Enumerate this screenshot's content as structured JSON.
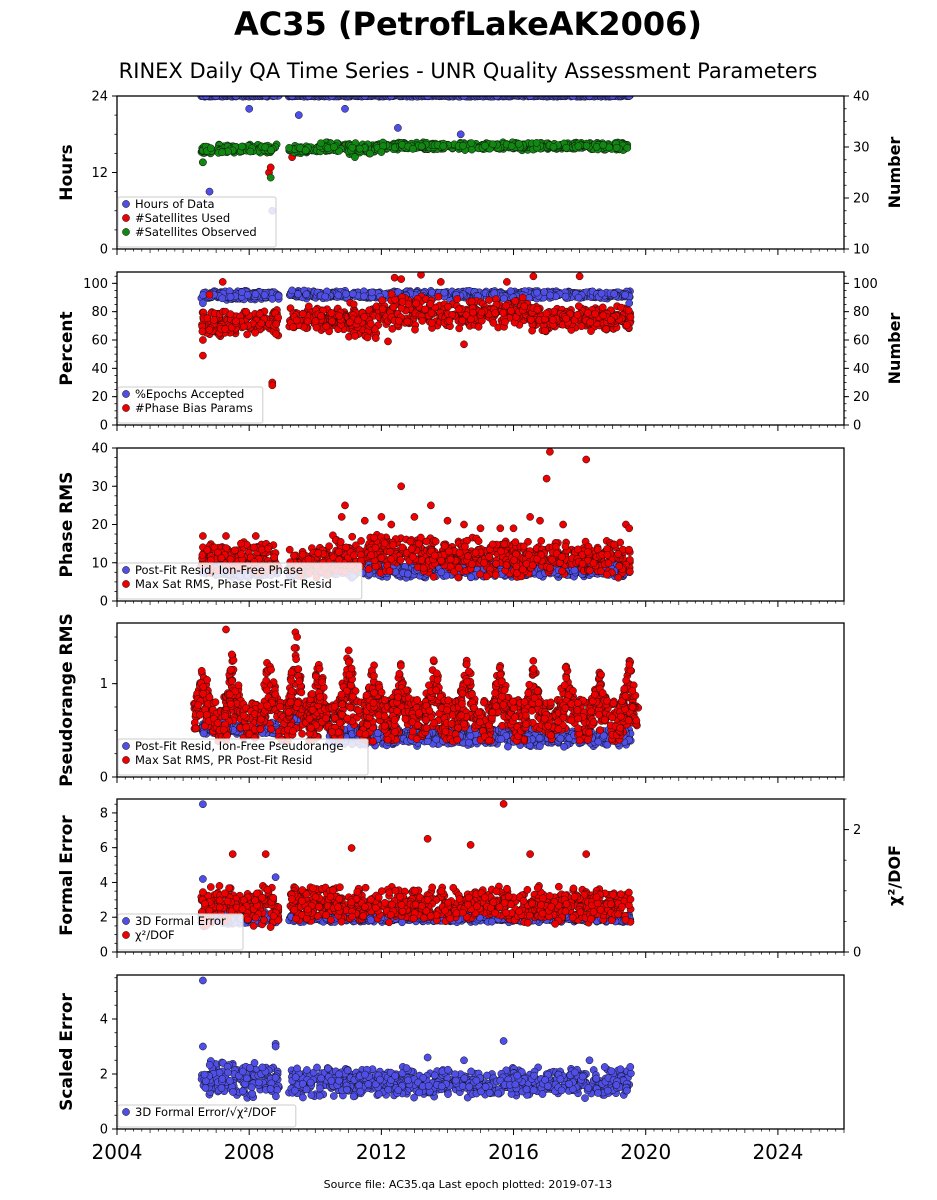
{
  "figure": {
    "title": "AC35 (PetrofLakeAK2006)",
    "subtitle": "RINEX Daily QA Time Series - UNR Quality Assessment Parameters",
    "footer": "Source file: AC35.qa Last epoch plotted: 2019-07-13",
    "colors": {
      "blue": "#4f4fe8",
      "red": "#ee0000",
      "green": "#118811",
      "edge": "#111111"
    }
  },
  "chart_data": [
    {
      "type": "scatter",
      "ylabel": "Hours",
      "y2label": "Number",
      "xlim": [
        2004,
        2026
      ],
      "ylim": [
        0,
        24
      ],
      "y2lim": [
        10,
        40
      ],
      "yticks": [
        0,
        12,
        24
      ],
      "y2ticks": [
        10,
        20,
        30,
        40
      ],
      "legend_position": "lower-left",
      "series": [
        {
          "name": "Hours of Data",
          "color": "#4f4fe8",
          "axis": "left",
          "points": [
            [
              2006.6,
              24
            ],
            [
              2006.7,
              24
            ],
            [
              2006.8,
              9
            ],
            [
              2007.0,
              24
            ],
            [
              2007.6,
              24
            ],
            [
              2008.0,
              22
            ],
            [
              2008.5,
              24
            ],
            [
              2008.7,
              6
            ],
            [
              2008.75,
              24
            ],
            [
              2009.3,
              24
            ],
            [
              2009.5,
              21
            ],
            [
              2009.8,
              24
            ],
            [
              2010.5,
              24
            ],
            [
              2010.9,
              22
            ],
            [
              2011.5,
              24
            ],
            [
              2012.3,
              24
            ],
            [
              2012.5,
              19
            ],
            [
              2013.4,
              24
            ],
            [
              2014.4,
              18
            ],
            [
              2014.5,
              24
            ],
            [
              2015.5,
              24
            ],
            [
              2016.5,
              24
            ],
            [
              2017.8,
              24
            ],
            [
              2018.3,
              24
            ],
            [
              2019.0,
              24
            ],
            [
              2019.5,
              24
            ]
          ],
          "segments": [
            [
              2006.55,
              2008.9,
              24
            ],
            [
              2009.2,
              2019.55,
              24
            ]
          ]
        },
        {
          "name": "#Satellites Used",
          "color": "#ee0000",
          "axis": "right",
          "points": [
            [
              2006.6,
              29
            ],
            [
              2006.6,
              27
            ],
            [
              2008.6,
              25
            ],
            [
              2008.65,
              26
            ],
            [
              2009.3,
              28
            ]
          ]
        },
        {
          "name": "#Satellites Observed",
          "color": "#118811",
          "axis": "right",
          "points": [
            [
              2006.6,
              27
            ],
            [
              2008.65,
              24
            ],
            [
              2011.2,
              28
            ],
            [
              2012.0,
              29
            ]
          ],
          "bands": [
            [
              2006.55,
              2006.9,
              28.5,
              30.3
            ],
            [
              2007.05,
              2008.85,
              28.7,
              30.6
            ],
            [
              2009.2,
              2010.1,
              28.7,
              30.3
            ],
            [
              2010.1,
              2011.0,
              29.0,
              31.0
            ],
            [
              2011.0,
              2011.8,
              28.5,
              30.8
            ],
            [
              2011.8,
              2012.6,
              29.2,
              31.0
            ],
            [
              2012.6,
              2019.5,
              29.3,
              31.0
            ]
          ]
        }
      ]
    },
    {
      "type": "scatter",
      "ylabel": "Percent",
      "y2label": "Number",
      "xlim": [
        2004,
        2026
      ],
      "ylim": [
        0,
        108
      ],
      "y2lim": [
        0,
        108
      ],
      "yticks": [
        0,
        20,
        40,
        60,
        80,
        100
      ],
      "y2ticks": [
        0,
        20,
        40,
        60,
        80,
        100
      ],
      "legend_position": "lower-left",
      "series": [
        {
          "name": "%Epochs Accepted",
          "color": "#4f4fe8",
          "axis": "left",
          "points": [
            [
              2006.6,
              86
            ],
            [
              2008.7,
              89
            ],
            [
              2009.3,
              95
            ],
            [
              2019.5,
              86
            ]
          ],
          "bands": [
            [
              2006.55,
              2008.9,
              88,
              95
            ],
            [
              2009.2,
              2019.55,
              89,
              95
            ]
          ]
        },
        {
          "name": "#Phase Bias Params",
          "color": "#ee0000",
          "axis": "right",
          "points": [
            [
              2006.6,
              49
            ],
            [
              2006.6,
              60
            ],
            [
              2006.8,
              92
            ],
            [
              2007.2,
              101
            ],
            [
              2008.7,
              30
            ],
            [
              2008.7,
              28
            ],
            [
              2012.2,
              59
            ],
            [
              2012.4,
              104
            ],
            [
              2012.6,
              103
            ],
            [
              2013.2,
              106
            ],
            [
              2013.8,
              101
            ],
            [
              2014.5,
              57
            ],
            [
              2015.8,
              101
            ],
            [
              2016.6,
              105
            ],
            [
              2018.0,
              105
            ]
          ],
          "bands": [
            [
              2006.55,
              2008.9,
              62,
              82
            ],
            [
              2009.2,
              2011.0,
              65,
              84
            ],
            [
              2011.0,
              2012.0,
              60,
              88
            ],
            [
              2012.0,
              2013.0,
              66,
              96
            ],
            [
              2013.0,
              2014.0,
              66,
              92
            ],
            [
              2014.0,
              2015.0,
              66,
              90
            ],
            [
              2015.0,
              2016.5,
              68,
              90
            ],
            [
              2016.5,
              2019.55,
              65,
              85
            ]
          ]
        }
      ]
    },
    {
      "type": "scatter",
      "ylabel": "Phase RMS",
      "xlim": [
        2004,
        2026
      ],
      "ylim": [
        0,
        40
      ],
      "yticks": [
        0,
        10,
        20,
        30,
        40
      ],
      "legend_position": "lower-left",
      "series": [
        {
          "name": "Post-Fit Resid, Ion-Free Phase",
          "color": "#4f4fe8",
          "bands": [
            [
              2006.55,
              2008.9,
              6,
              10
            ],
            [
              2009.2,
              2019.55,
              6,
              10
            ]
          ]
        },
        {
          "name": "Max Sat RMS, Phase Post-Fit Resid",
          "color": "#ee0000",
          "points": [
            [
              2006.6,
              17
            ],
            [
              2007.3,
              17
            ],
            [
              2008.2,
              17
            ],
            [
              2010.8,
              22
            ],
            [
              2010.9,
              25
            ],
            [
              2011.5,
              21
            ],
            [
              2012.0,
              22
            ],
            [
              2012.3,
              20
            ],
            [
              2012.6,
              30
            ],
            [
              2013.0,
              22
            ],
            [
              2013.5,
              25
            ],
            [
              2014.0,
              21
            ],
            [
              2014.5,
              20
            ],
            [
              2015.0,
              19
            ],
            [
              2015.6,
              19
            ],
            [
              2016.0,
              19
            ],
            [
              2016.5,
              22
            ],
            [
              2016.8,
              21
            ],
            [
              2017.0,
              32
            ],
            [
              2017.1,
              39
            ],
            [
              2017.5,
              20
            ],
            [
              2018.2,
              37
            ],
            [
              2019.4,
              20
            ],
            [
              2019.5,
              19
            ]
          ],
          "bands": [
            [
              2006.55,
              2008.9,
              7,
              16
            ],
            [
              2009.2,
              2010.5,
              6,
              15
            ],
            [
              2010.5,
              2013.5,
              7,
              18
            ],
            [
              2013.5,
              2016.0,
              6,
              17
            ],
            [
              2016.0,
              2019.55,
              6,
              16
            ]
          ]
        }
      ]
    },
    {
      "type": "scatter",
      "ylabel": "Pseudorange RMS",
      "xlim": [
        2004,
        2026
      ],
      "ylim": [
        0,
        1.65
      ],
      "yticks": [
        0,
        1
      ],
      "legend_position": "lower-left",
      "series": [
        {
          "name": "Post-Fit Resid, Ion-Free Pseudorange",
          "color": "#4f4fe8",
          "bands": [
            [
              2006.55,
              2008.9,
              0.45,
              0.6
            ],
            [
              2009.2,
              2010.4,
              0.55,
              0.7
            ],
            [
              2010.4,
              2019.55,
              0.32,
              0.55
            ]
          ]
        },
        {
          "name": "Max Sat RMS, PR Post-Fit Resid",
          "color": "#ee0000",
          "points": [
            [
              2007.3,
              1.58
            ],
            [
              2009.4,
              1.55
            ],
            [
              2009.45,
              1.5
            ]
          ],
          "peaks": [
            [
              2006.6,
              1.25
            ],
            [
              2007.5,
              1.38
            ],
            [
              2008.6,
              1.4
            ],
            [
              2009.4,
              1.5
            ],
            [
              2010.1,
              1.3
            ],
            [
              2011.0,
              1.4
            ],
            [
              2011.8,
              1.35
            ],
            [
              2012.6,
              1.25
            ],
            [
              2013.6,
              1.32
            ],
            [
              2014.6,
              1.3
            ],
            [
              2015.6,
              1.25
            ],
            [
              2016.6,
              1.25
            ],
            [
              2017.6,
              1.25
            ],
            [
              2018.6,
              1.2
            ],
            [
              2019.5,
              1.3
            ]
          ]
        }
      ]
    },
    {
      "type": "scatter",
      "ylabel": "Formal Error",
      "y2label": "χ²/DOF",
      "xlim": [
        2004,
        2026
      ],
      "ylim": [
        0,
        8.8
      ],
      "y2lim": [
        0,
        2.5
      ],
      "yticks": [
        0,
        2,
        4,
        6,
        8
      ],
      "y2ticks": [
        0,
        2
      ],
      "legend_position": "lower-left",
      "series": [
        {
          "name": "3D Formal Error",
          "color": "#4f4fe8",
          "axis": "left",
          "points": [
            [
              2006.6,
              8.5
            ],
            [
              2006.6,
              4.2
            ],
            [
              2008.8,
              4.3
            ]
          ],
          "bands": [
            [
              2006.55,
              2008.9,
              1.6,
              2.3
            ],
            [
              2009.2,
              2019.55,
              1.7,
              2.2
            ]
          ]
        },
        {
          "name": "χ²/DOF",
          "color": "#ee0000",
          "axis": "right",
          "points": [
            [
              2007.5,
              1.6
            ],
            [
              2008.5,
              1.6
            ],
            [
              2011.1,
              1.7
            ],
            [
              2013.4,
              1.85
            ],
            [
              2014.7,
              1.75
            ],
            [
              2015.7,
              2.42
            ],
            [
              2016.5,
              1.6
            ],
            [
              2018.2,
              1.6
            ]
          ],
          "bands": [
            [
              2006.55,
              2008.9,
              0.4,
              1.1
            ],
            [
              2009.2,
              2019.55,
              0.45,
              1.1
            ]
          ]
        }
      ]
    },
    {
      "type": "scatter",
      "ylabel": "Scaled Error",
      "xlim": [
        2004,
        2026
      ],
      "ylim": [
        0,
        5.6
      ],
      "yticks": [
        0,
        2,
        4
      ],
      "xticks": [
        2004,
        2008,
        2012,
        2016,
        2020,
        2024
      ],
      "legend_position": "lower-left",
      "series": [
        {
          "name": "3D Formal Error/√χ²/DOF",
          "color": "#4f4fe8",
          "points": [
            [
              2006.6,
              5.4
            ],
            [
              2006.6,
              3.0
            ],
            [
              2008.8,
              3.1
            ],
            [
              2008.8,
              3.0
            ],
            [
              2015.7,
              3.2
            ],
            [
              2018.3,
              2.5
            ],
            [
              2013.4,
              2.6
            ],
            [
              2014.5,
              2.5
            ]
          ],
          "bands": [
            [
              2006.55,
              2008.9,
              1.1,
              2.5
            ],
            [
              2009.2,
              2019.55,
              1.1,
              2.3
            ]
          ]
        }
      ]
    }
  ]
}
